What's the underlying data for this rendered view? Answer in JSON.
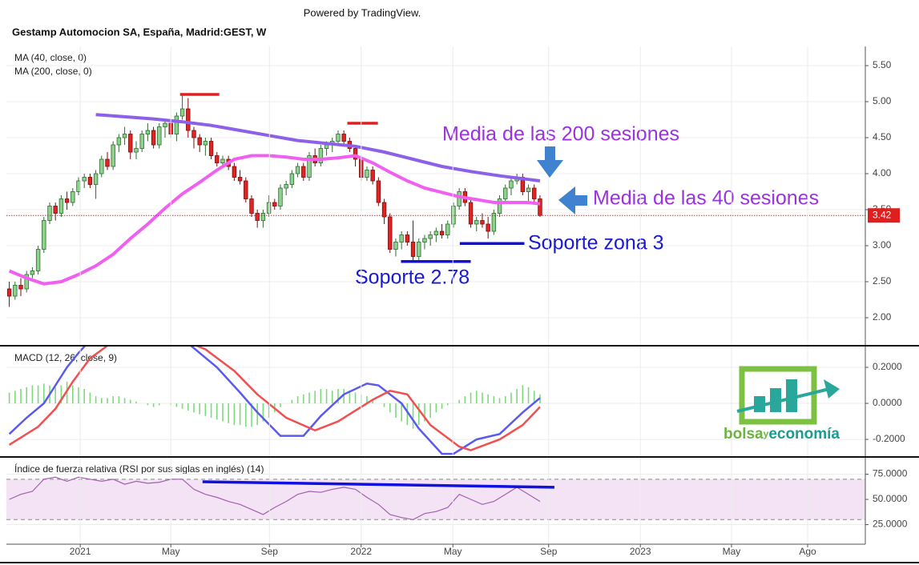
{
  "header": {
    "powered_by": "Powered by TradingView."
  },
  "logo": {
    "parts": [
      "bolsa",
      "y",
      "economía"
    ]
  },
  "chart_data": [
    {
      "type": "candlestick",
      "title": "Gestamp Automocion SA, España, Madrid:GEST, W",
      "xlim": [
        -0.5,
        148.4
      ],
      "ylim": [
        1.611,
        5.767
      ],
      "yticks": [
        {
          "value": 2,
          "label": "2.00"
        },
        {
          "value": 2.5,
          "label": "2.50"
        },
        {
          "value": 3,
          "label": "3.00"
        },
        {
          "value": 3.5,
          "label": "3.50"
        },
        {
          "value": 4,
          "label": "4.00"
        },
        {
          "value": 4.5,
          "label": "4.50"
        },
        {
          "value": 5,
          "label": "5.00"
        },
        {
          "value": 5.5,
          "label": "5.50"
        }
      ],
      "grid": true,
      "up_color": "#8fd18f",
      "down_color": "#e02424",
      "candles": [
        [
          2.4,
          2.5,
          2.15,
          2.3
        ],
        [
          2.3,
          2.5,
          2.25,
          2.45
        ],
        [
          2.45,
          2.55,
          2.3,
          2.4
        ],
        [
          2.4,
          2.65,
          2.35,
          2.6
        ],
        [
          2.6,
          2.7,
          2.55,
          2.65
        ],
        [
          2.65,
          3.0,
          2.6,
          2.95
        ],
        [
          2.95,
          3.4,
          2.9,
          3.35
        ],
        [
          3.35,
          3.6,
          3.3,
          3.55
        ],
        [
          3.55,
          3.6,
          3.35,
          3.45
        ],
        [
          3.45,
          3.7,
          3.4,
          3.65
        ],
        [
          3.65,
          3.75,
          3.5,
          3.6
        ],
        [
          3.6,
          3.8,
          3.55,
          3.75
        ],
        [
          3.75,
          3.95,
          3.7,
          3.9
        ],
        [
          3.9,
          4.0,
          3.8,
          3.95
        ],
        [
          3.95,
          4.0,
          3.8,
          3.85
        ],
        [
          3.85,
          4.05,
          3.65,
          4.0
        ],
        [
          4.0,
          4.25,
          3.95,
          4.2
        ],
        [
          4.2,
          4.3,
          4.05,
          4.1
        ],
        [
          4.1,
          4.45,
          4.05,
          4.4
        ],
        [
          4.4,
          4.55,
          4.3,
          4.5
        ],
        [
          4.5,
          4.65,
          4.4,
          4.55
        ],
        [
          4.55,
          4.6,
          4.2,
          4.3
        ],
        [
          4.3,
          4.45,
          4.2,
          4.35
        ],
        [
          4.35,
          4.6,
          4.3,
          4.55
        ],
        [
          4.55,
          4.7,
          4.45,
          4.6
        ],
        [
          4.6,
          4.65,
          4.35,
          4.4
        ],
        [
          4.4,
          4.7,
          4.35,
          4.65
        ],
        [
          4.65,
          4.75,
          4.5,
          4.7
        ],
        [
          4.7,
          4.75,
          4.5,
          4.55
        ],
        [
          4.55,
          4.85,
          4.45,
          4.8
        ],
        [
          4.8,
          5.1,
          4.75,
          4.9
        ],
        [
          4.9,
          5.05,
          4.5,
          4.6
        ],
        [
          4.6,
          4.65,
          4.35,
          4.5
        ],
        [
          4.5,
          4.55,
          4.3,
          4.4
        ],
        [
          4.4,
          4.5,
          4.25,
          4.45
        ],
        [
          4.45,
          4.5,
          4.2,
          4.25
        ],
        [
          4.25,
          4.3,
          4.1,
          4.15
        ],
        [
          4.15,
          4.25,
          4.1,
          4.2
        ],
        [
          4.2,
          4.25,
          4.05,
          4.1
        ],
        [
          4.1,
          4.15,
          3.9,
          3.95
        ],
        [
          3.95,
          4.05,
          3.85,
          3.9
        ],
        [
          3.9,
          3.95,
          3.6,
          3.65
        ],
        [
          3.65,
          3.7,
          3.4,
          3.45
        ],
        [
          3.45,
          3.5,
          3.25,
          3.35
        ],
        [
          3.35,
          3.5,
          3.25,
          3.45
        ],
        [
          3.45,
          3.7,
          3.4,
          3.6
        ],
        [
          3.6,
          3.65,
          3.5,
          3.55
        ],
        [
          3.55,
          3.85,
          3.5,
          3.8
        ],
        [
          3.8,
          3.9,
          3.7,
          3.85
        ],
        [
          3.85,
          4.05,
          3.8,
          4.0
        ],
        [
          4.0,
          4.15,
          3.95,
          4.1
        ],
        [
          4.1,
          4.15,
          3.9,
          3.95
        ],
        [
          3.95,
          4.3,
          3.9,
          4.25
        ],
        [
          4.25,
          4.35,
          4.1,
          4.15
        ],
        [
          4.15,
          4.4,
          4.1,
          4.35
        ],
        [
          4.35,
          4.45,
          4.25,
          4.4
        ],
        [
          4.4,
          4.5,
          4.3,
          4.45
        ],
        [
          4.45,
          4.6,
          4.4,
          4.55
        ],
        [
          4.55,
          4.6,
          4.4,
          4.45
        ],
        [
          4.45,
          4.5,
          4.3,
          4.35
        ],
        [
          4.35,
          4.4,
          4.1,
          4.2
        ],
        [
          4.2,
          4.25,
          3.9,
          3.95
        ],
        [
          3.95,
          4.1,
          3.9,
          4.05
        ],
        [
          4.05,
          4.1,
          3.85,
          3.9
        ],
        [
          3.9,
          3.95,
          3.55,
          3.6
        ],
        [
          3.6,
          3.65,
          3.3,
          3.4
        ],
        [
          3.4,
          3.45,
          2.9,
          2.95
        ],
        [
          2.95,
          3.1,
          2.85,
          3.05
        ],
        [
          3.05,
          3.2,
          2.95,
          3.15
        ],
        [
          3.15,
          3.2,
          3.0,
          3.05
        ],
        [
          3.05,
          3.35,
          2.78,
          2.85
        ],
        [
          2.85,
          3.1,
          2.8,
          3.05
        ],
        [
          3.05,
          3.15,
          2.95,
          3.1
        ],
        [
          3.1,
          3.2,
          3.0,
          3.15
        ],
        [
          3.15,
          3.25,
          3.05,
          3.2
        ],
        [
          3.2,
          3.3,
          3.1,
          3.15
        ],
        [
          3.15,
          3.35,
          3.1,
          3.3
        ],
        [
          3.3,
          3.6,
          3.25,
          3.55
        ],
        [
          3.55,
          3.8,
          3.5,
          3.75
        ],
        [
          3.75,
          3.8,
          3.55,
          3.6
        ],
        [
          3.6,
          3.65,
          3.25,
          3.3
        ],
        [
          3.3,
          3.4,
          3.2,
          3.35
        ],
        [
          3.35,
          3.45,
          3.25,
          3.3
        ],
        [
          3.3,
          3.4,
          3.1,
          3.2
        ],
        [
          3.2,
          3.5,
          3.15,
          3.45
        ],
        [
          3.45,
          3.7,
          3.4,
          3.65
        ],
        [
          3.65,
          3.85,
          3.6,
          3.8
        ],
        [
          3.8,
          3.95,
          3.7,
          3.9
        ],
        [
          3.9,
          4.0,
          3.85,
          3.95
        ],
        [
          3.95,
          4.0,
          3.7,
          3.75
        ],
        [
          3.75,
          3.85,
          3.6,
          3.8
        ],
        [
          3.8,
          3.85,
          3.6,
          3.65
        ],
        [
          3.65,
          3.7,
          3.4,
          3.42
        ]
      ],
      "lines": [
        {
          "name": "MA (40, close, 0)",
          "color": "#f060f0",
          "x": [
            0,
            3,
            6,
            9,
            12,
            15,
            18,
            21,
            24,
            27,
            30,
            33,
            36,
            39,
            42,
            45,
            48,
            51,
            54,
            57,
            60,
            63,
            66,
            69,
            72,
            75,
            78,
            81,
            84,
            87,
            90,
            92
          ],
          "values": [
            2.65,
            2.55,
            2.47,
            2.5,
            2.6,
            2.72,
            2.88,
            3.1,
            3.3,
            3.52,
            3.72,
            3.88,
            4.05,
            4.2,
            4.25,
            4.25,
            4.23,
            4.2,
            4.2,
            4.22,
            4.25,
            4.15,
            4.02,
            3.9,
            3.8,
            3.74,
            3.68,
            3.64,
            3.6,
            3.6,
            3.6,
            3.58
          ]
        },
        {
          "name": "MA (200, close, 0)",
          "color": "#8c60e8",
          "x": [
            15,
            20,
            25,
            30,
            35,
            40,
            45,
            50,
            55,
            60,
            65,
            70,
            75,
            80,
            85,
            90,
            92
          ],
          "values": [
            4.82,
            4.79,
            4.76,
            4.72,
            4.67,
            4.6,
            4.53,
            4.46,
            4.42,
            4.38,
            4.3,
            4.2,
            4.1,
            4.03,
            3.97,
            3.92,
            3.9
          ]
        }
      ],
      "last_price": 3.42,
      "last_price_color": "#e01e1e",
      "levels": [
        {
          "value": 5.1,
          "x": [
            29.6,
            36.4
          ],
          "color": "#e02020"
        },
        {
          "value": 4.7,
          "x": [
            58.6,
            63.9
          ],
          "color": "#e02020"
        },
        {
          "value": 2.78,
          "x": [
            67.9,
            80.0
          ],
          "color": "#1010d8"
        },
        {
          "value": 3.03,
          "x": [
            78.1,
            89.3
          ],
          "color": "#1010d8"
        }
      ],
      "annotations": [
        {
          "text": "Media de las 200 sesiones",
          "color": "#9933dd"
        },
        {
          "text": "Media de las 40 sesiones",
          "color": "#9933dd"
        },
        {
          "text": "Soporte zona 3",
          "color": "#1a1ad0"
        },
        {
          "text": "Soporte 2.78",
          "color": "#1a1ad0"
        }
      ]
    },
    {
      "type": "macd",
      "title": "MACD (12, 26, close, 9)",
      "xlim": [
        -0.5,
        148.4
      ],
      "ylim": [
        -0.293,
        0.32
      ],
      "yticks": [
        {
          "value": -0.2,
          "label": "-0.2000"
        },
        {
          "value": 0,
          "label": "0.0000"
        },
        {
          "value": 0.2,
          "label": "0.2000"
        }
      ],
      "histogram": {
        "color": "#7ed97e",
        "values": [
          0.06,
          0.07,
          0.08,
          0.09,
          0.1,
          0.1,
          0.11,
          0.1,
          0.09,
          0.1,
          0.12,
          0.1,
          0.09,
          0.08,
          0.06,
          0.04,
          0.03,
          0.03,
          0.04,
          0.04,
          0.03,
          0.02,
          0.01,
          0.0,
          -0.01,
          -0.02,
          -0.01,
          0.0,
          -0.01,
          -0.02,
          -0.03,
          -0.04,
          -0.05,
          -0.06,
          -0.07,
          -0.08,
          -0.09,
          -0.1,
          -0.11,
          -0.12,
          -0.12,
          -0.13,
          -0.13,
          -0.12,
          -0.1,
          -0.08,
          -0.05,
          -0.02,
          0.0,
          0.02,
          0.04,
          0.05,
          0.06,
          0.07,
          0.08,
          0.08,
          0.07,
          0.08,
          0.08,
          0.07,
          0.06,
          0.05,
          0.04,
          0.02,
          0.0,
          -0.02,
          -0.05,
          -0.08,
          -0.1,
          -0.12,
          -0.14,
          -0.12,
          -0.1,
          -0.08,
          -0.05,
          -0.03,
          -0.01,
          0.0,
          0.02,
          0.04,
          0.06,
          0.07,
          0.06,
          0.05,
          0.04,
          0.03,
          0.04,
          0.06,
          0.08,
          0.1,
          0.09,
          0.07,
          0.05
        ]
      },
      "lines": [
        {
          "color": "#5a5af0",
          "x": [
            0,
            3,
            6,
            8,
            10,
            12,
            14,
            17,
            20,
            25,
            29,
            31.5,
            36,
            40,
            43,
            47,
            51,
            54,
            58,
            62,
            64,
            68,
            71,
            75,
            77,
            81,
            85,
            89,
            92
          ],
          "values": [
            -0.17,
            -0.08,
            0.0,
            0.1,
            0.2,
            0.28,
            0.35,
            0.4,
            0.42,
            0.42,
            0.38,
            0.32,
            0.2,
            0.06,
            -0.05,
            -0.18,
            -0.18,
            -0.07,
            0.05,
            0.11,
            0.1,
            0.0,
            -0.14,
            -0.28,
            -0.28,
            -0.2,
            -0.17,
            -0.05,
            0.03
          ]
        },
        {
          "color": "#f05050",
          "x": [
            0,
            5,
            8,
            11,
            14,
            17,
            22,
            28,
            34,
            39,
            43,
            48,
            53,
            57,
            63,
            66,
            69,
            73,
            78,
            80,
            85,
            89,
            92
          ],
          "values": [
            -0.23,
            -0.13,
            -0.03,
            0.12,
            0.25,
            0.32,
            0.38,
            0.38,
            0.3,
            0.18,
            0.05,
            -0.08,
            -0.15,
            -0.1,
            0.02,
            0.07,
            0.05,
            -0.12,
            -0.24,
            -0.26,
            -0.2,
            -0.12,
            -0.02
          ]
        }
      ]
    },
    {
      "type": "rsi",
      "title": "Índice de fuerza relativa (RSI por sus siglas en inglés) (14)",
      "xlim": [
        -0.5,
        148.4
      ],
      "ylim": [
        5.6,
        91.3
      ],
      "yticks": [
        {
          "value": 25,
          "label": "25.0000"
        },
        {
          "value": 50,
          "label": "50.0000"
        },
        {
          "value": 75,
          "label": "75.0000"
        }
      ],
      "xticks": [
        {
          "value": 12.3,
          "label": "2021"
        },
        {
          "value": 28.0,
          "label": "May"
        },
        {
          "value": 45.1,
          "label": "Sep"
        },
        {
          "value": 61.0,
          "label": "2022"
        },
        {
          "value": 76.9,
          "label": "May"
        },
        {
          "value": 93.5,
          "label": "Sep"
        },
        {
          "value": 109.4,
          "label": "2023"
        },
        {
          "value": 125.2,
          "label": "May"
        },
        {
          "value": 138.4,
          "label": "Ago"
        }
      ],
      "color": "#a35fb0",
      "bands": [
        30,
        70
      ],
      "band_color": "#f3e3f5",
      "x": [
        0,
        2,
        4,
        6,
        8,
        10,
        12,
        14,
        16,
        18,
        20,
        22,
        24,
        26,
        28,
        30,
        32,
        34,
        36,
        38,
        40,
        42,
        44,
        46,
        48,
        50,
        52,
        54,
        56,
        58,
        60,
        62,
        64,
        66,
        68,
        70,
        72,
        74,
        76,
        78,
        80,
        82,
        84,
        86,
        88,
        90,
        92
      ],
      "values": [
        50,
        55,
        58,
        70,
        72,
        68,
        72,
        70,
        68,
        70,
        65,
        68,
        66,
        67,
        70,
        70,
        60,
        55,
        52,
        48,
        45,
        40,
        35,
        42,
        48,
        55,
        58,
        57,
        60,
        62,
        60,
        52,
        45,
        35,
        32,
        30,
        36,
        38,
        42,
        55,
        50,
        45,
        48,
        55,
        62,
        55,
        48
      ],
      "trendline": {
        "x": [
          33.5,
          94.5
        ],
        "values": [
          67.5,
          62
        ],
        "color": "#1010e0"
      }
    }
  ]
}
